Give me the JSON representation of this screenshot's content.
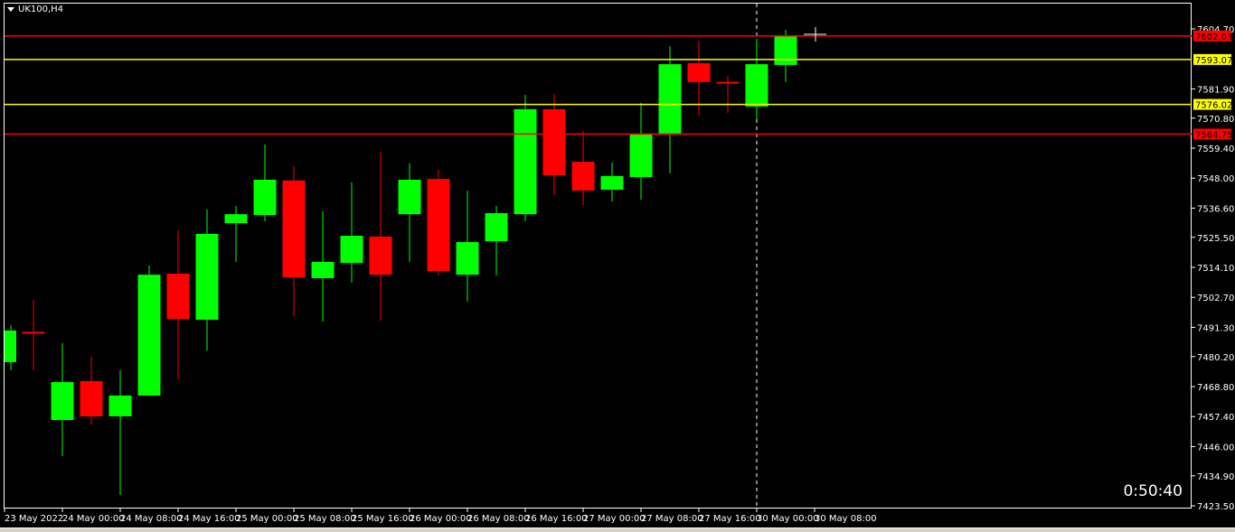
{
  "window": {
    "symbol_label": "UK100,H4",
    "countdown": "0:50:40"
  },
  "colors": {
    "bull": "#00ff00",
    "bear": "#ff0000",
    "background": "#000000",
    "axis": "#ffffff",
    "support_resistance_yellow": "#ffff00",
    "support_resistance_red": "#ff0000"
  },
  "chart_data": {
    "type": "candlestick",
    "ylim": [
      7423.5,
      7604.7
    ],
    "price_ticks": [
      "7604.70",
      "7581.90",
      "7570.80",
      "7559.40",
      "7548.00",
      "7536.60",
      "7525.50",
      "7514.10",
      "7502.70",
      "7491.30",
      "7480.20",
      "7468.80",
      "7457.40",
      "7446.00",
      "7434.90",
      "7423.50"
    ],
    "time_ticks": [
      "23 May 2022",
      "24 May 00:00",
      "24 May 08:00",
      "24 May 16:00",
      "25 May 00:00",
      "25 May 08:00",
      "25 May 16:00",
      "26 May 00:00",
      "26 May 08:00",
      "26 May 16:00",
      "27 May 00:00",
      "27 May 08:00",
      "27 May 16:00",
      "30 May 00:00",
      "30 May 08:00"
    ],
    "candles": [
      [
        7478.1,
        7492.1,
        7475.0,
        7490.1
      ],
      [
        7489.6,
        7501.7,
        7475.0,
        7489.4
      ],
      [
        7456.1,
        7485.3,
        7442.4,
        7470.5
      ],
      [
        7470.9,
        7480.1,
        7454.4,
        7457.5
      ],
      [
        7457.5,
        7475.0,
        7427.6,
        7465.4
      ],
      [
        7465.4,
        7514.8,
        7465.4,
        7511.3
      ],
      [
        7511.7,
        7528.2,
        7471.5,
        7494.5
      ],
      [
        7494.2,
        7536.1,
        7482.5,
        7526.8
      ],
      [
        7530.9,
        7537.4,
        7516.2,
        7534.3
      ],
      [
        7534.0,
        7560.8,
        7531.6,
        7547.4
      ],
      [
        7547.1,
        7552.5,
        7495.6,
        7510.3
      ],
      [
        7510.0,
        7535.4,
        7493.5,
        7516.2
      ],
      [
        7515.8,
        7546.4,
        7508.3,
        7526.1
      ],
      [
        7525.8,
        7558.0,
        7493.8,
        7511.3
      ],
      [
        7534.3,
        7553.6,
        7516.2,
        7547.4
      ],
      [
        7547.7,
        7551.2,
        7511.0,
        7512.7
      ],
      [
        7511.3,
        7543.3,
        7501.1,
        7523.7
      ],
      [
        7524.0,
        7537.4,
        7511.0,
        7534.7
      ],
      [
        7534.3,
        7579.6,
        7531.6,
        7574.2
      ],
      [
        7574.2,
        7580.0,
        7541.6,
        7549.1
      ],
      [
        7554.2,
        7565.9,
        7537.8,
        7543.3
      ],
      [
        7543.6,
        7553.9,
        7539.1,
        7548.8
      ],
      [
        7548.4,
        7576.6,
        7539.8,
        7564.9
      ],
      [
        7564.5,
        7598.2,
        7549.8,
        7591.3
      ],
      [
        7591.7,
        7600.2,
        7571.8,
        7584.5
      ],
      [
        7584.6,
        7586.9,
        7572.8,
        7584.1
      ],
      [
        7575.2,
        7600.9,
        7570.4,
        7591.3
      ],
      [
        7591.0,
        7604.4,
        7584.5,
        7602.03
      ]
    ],
    "horizontal_lines": [
      {
        "price": 7602.03,
        "label": "7602.03",
        "color": "#ff0000"
      },
      {
        "price": 7593.07,
        "label": "7593.07",
        "color": "#ffff00"
      },
      {
        "price": 7576.02,
        "label": "7576.02",
        "color": "#ffff00"
      },
      {
        "price": 7564.75,
        "label": "7564.75",
        "color": "#ff0000"
      }
    ],
    "period_separator_at": "30 May 00:00"
  }
}
